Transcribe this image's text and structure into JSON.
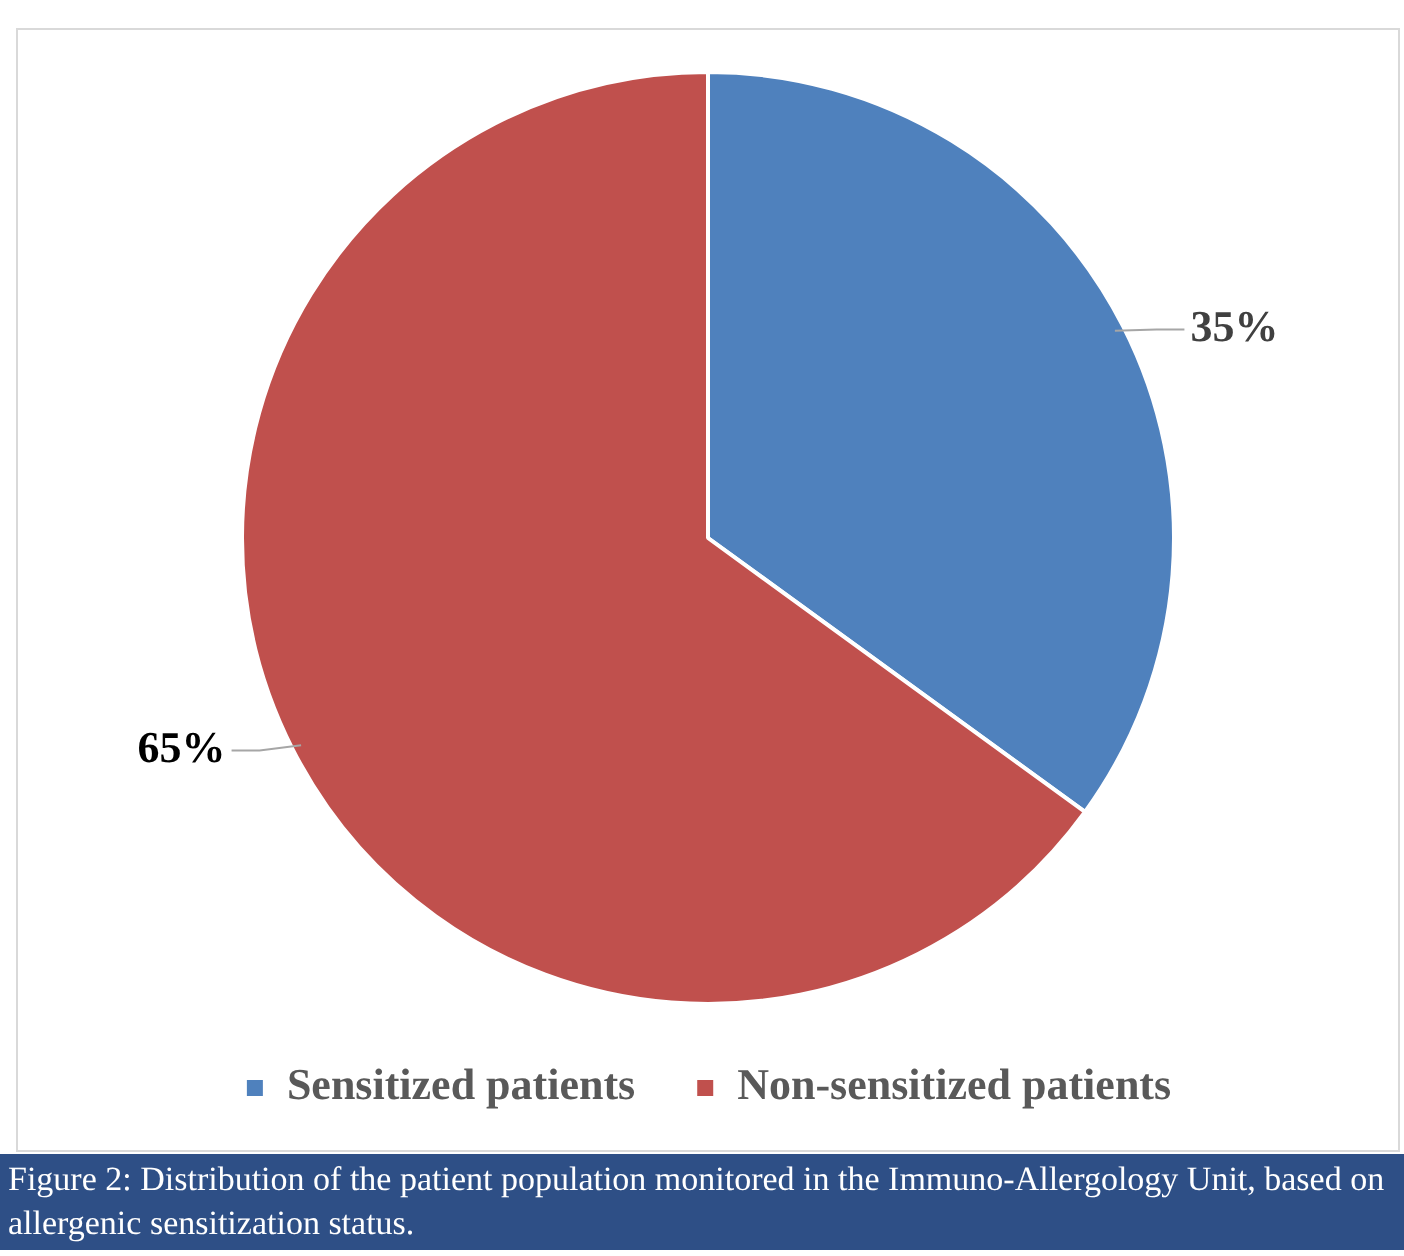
{
  "chart_data": {
    "type": "pie",
    "categories": [
      "Sensitized patients",
      "Non-sensitized patients"
    ],
    "values": [
      35,
      65
    ],
    "colors": [
      "#4f81bd",
      "#c0504d"
    ],
    "legend": "bottom",
    "value_labels": [
      "35%",
      "65%"
    ],
    "annotations": [
      "Figure 2: Distribution of the patient population monitored in the Immuno-Allergology Unit, based on allergenic sensitization status."
    ]
  }
}
